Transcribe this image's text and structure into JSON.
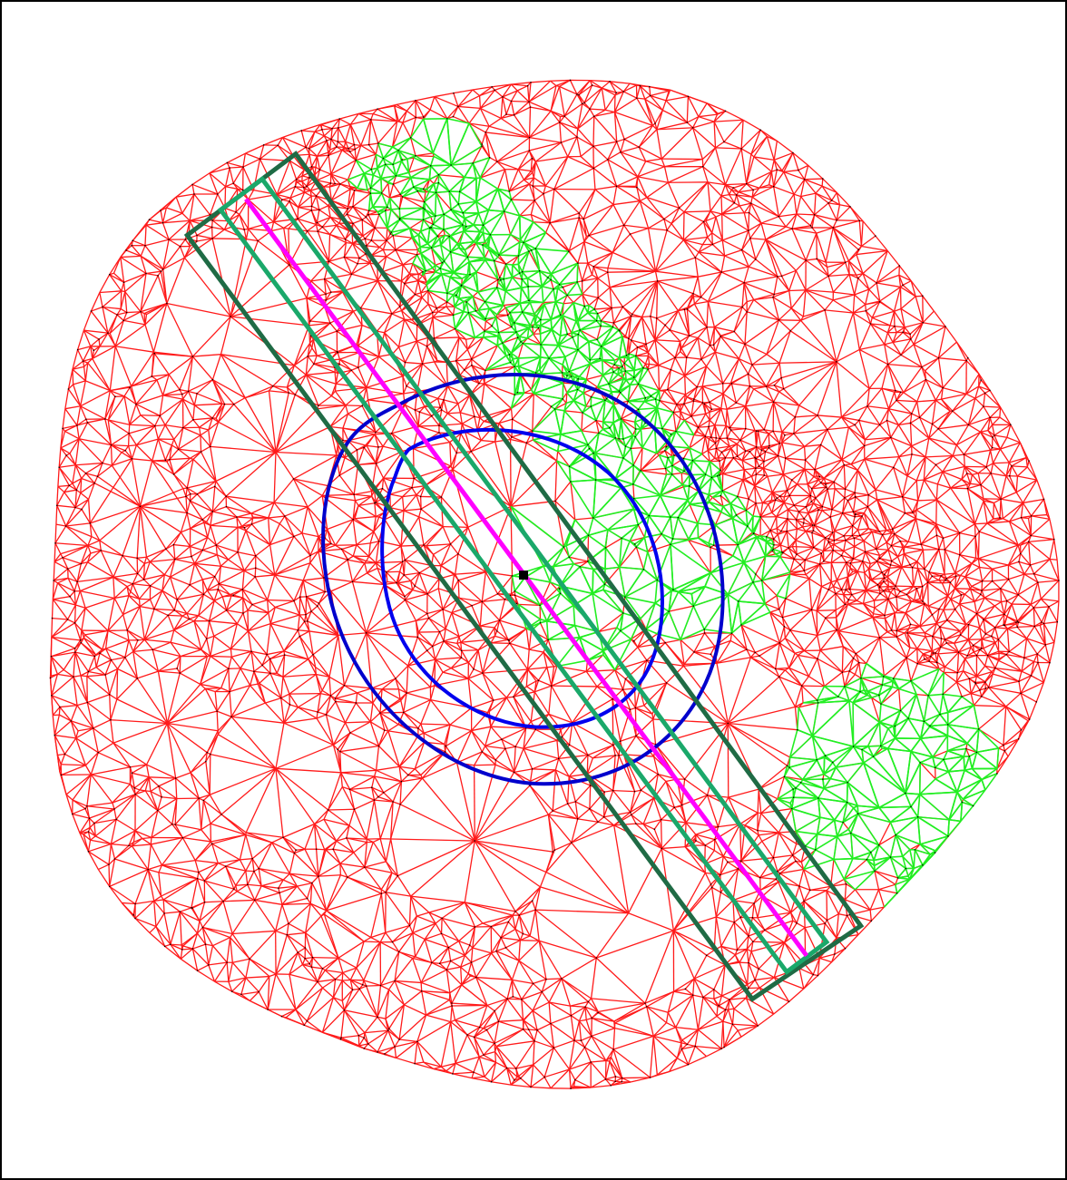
{
  "figure": {
    "description_visible_text": "",
    "colors": {
      "triangulation_edges": "#ff1a1a",
      "highlighted_edges": "#22ee22",
      "vertices": "#000000",
      "outer_ring": "#0000cc",
      "inner_ring": "#0000ee",
      "axis_line": "#ff00ff",
      "outer_strip": "#1f6b45",
      "inner_strip": "#1aa86a",
      "center_marker": "#000000",
      "frame": "#000000",
      "background": "#ffffff"
    },
    "layers": [
      "triangulation-mesh",
      "highlighted-mesh-region",
      "mesh-vertices",
      "outer-buffer-ring",
      "inner-buffer-ring",
      "outer-strip",
      "inner-strip",
      "center-axis-line",
      "center-marker"
    ]
  }
}
